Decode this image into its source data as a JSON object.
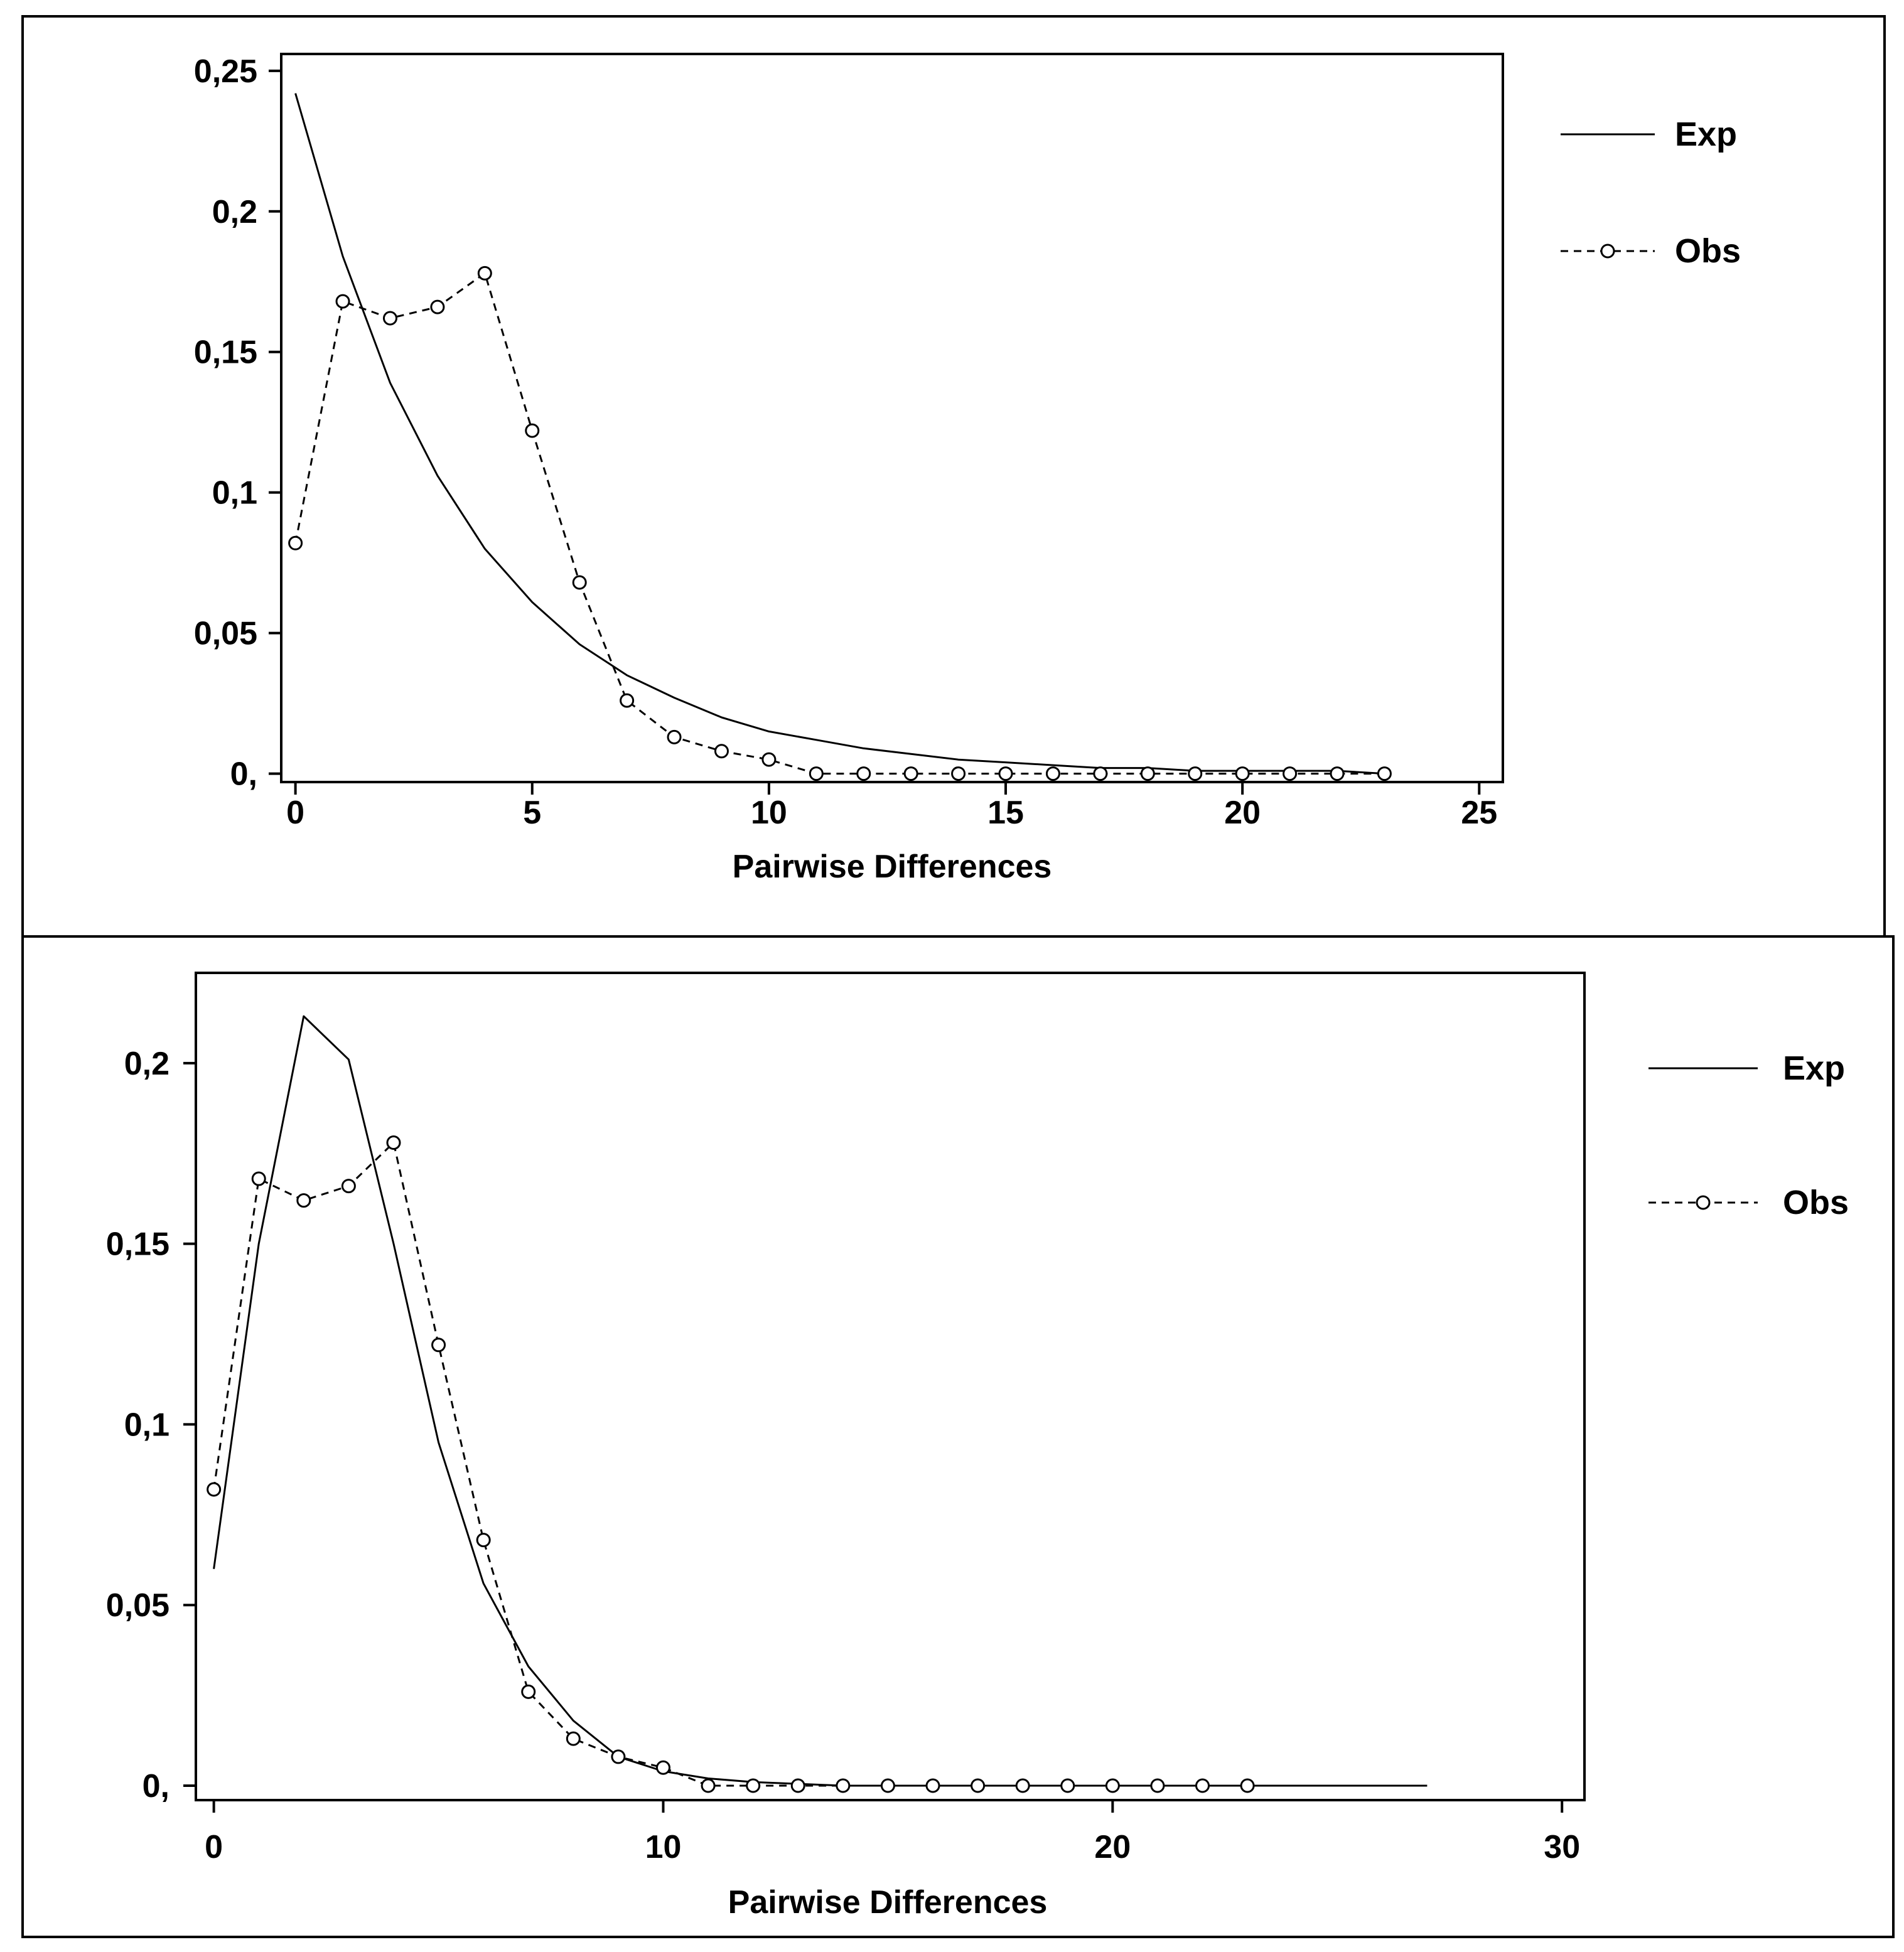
{
  "chart_data": [
    {
      "type": "line",
      "xlabel": "Pairwise Differences",
      "ylabel": "",
      "xlim": [
        -0.3,
        25.5
      ],
      "ylim": [
        -0.003,
        0.256
      ],
      "xticks": [
        0,
        5,
        10,
        15,
        20,
        25
      ],
      "xtick_labels": [
        "0",
        "5",
        "10",
        "15",
        "20",
        "25"
      ],
      "yticks": [
        0,
        0.05,
        0.1,
        0.15,
        0.2,
        0.25
      ],
      "ytick_labels": [
        "0,",
        "0,05",
        "0,1",
        "0,15",
        "0,2",
        "0,25"
      ],
      "legend_position": "right",
      "series": [
        {
          "name": "Exp",
          "style": "solid",
          "x": [
            0,
            1,
            2,
            3,
            4,
            5,
            6,
            7,
            8,
            9,
            10,
            11,
            12,
            13,
            14,
            15,
            16,
            17,
            18,
            19,
            20,
            21,
            22,
            23
          ],
          "values": [
            0.242,
            0.184,
            0.139,
            0.106,
            0.08,
            0.061,
            0.046,
            0.035,
            0.027,
            0.02,
            0.015,
            0.012,
            0.009,
            0.007,
            0.005,
            0.004,
            0.003,
            0.002,
            0.002,
            0.001,
            0.001,
            0.001,
            0.001,
            0.0
          ]
        },
        {
          "name": "Obs",
          "style": "dashed-circles",
          "x": [
            0,
            1,
            2,
            3,
            4,
            5,
            6,
            7,
            8,
            9,
            10,
            11,
            12,
            13,
            14,
            15,
            16,
            17,
            18,
            19,
            20,
            21,
            22,
            23
          ],
          "values": [
            0.082,
            0.168,
            0.162,
            0.166,
            0.178,
            0.122,
            0.068,
            0.026,
            0.013,
            0.008,
            0.005,
            0,
            0,
            0,
            0,
            0,
            0,
            0,
            0,
            0,
            0,
            0,
            0,
            0
          ]
        }
      ]
    },
    {
      "type": "line",
      "xlabel": "Pairwise Differences",
      "ylabel": "",
      "xlim": [
        -0.4,
        30.5
      ],
      "ylim": [
        -0.004,
        0.225
      ],
      "xticks": [
        0,
        10,
        20,
        30
      ],
      "xtick_labels": [
        "0",
        "10",
        "20",
        "30"
      ],
      "yticks": [
        0,
        0.05,
        0.1,
        0.15,
        0.2
      ],
      "ytick_labels": [
        "0,",
        "0,05",
        "0,1",
        "0,15",
        "0,2"
      ],
      "legend_position": "right",
      "series": [
        {
          "name": "Exp",
          "style": "solid",
          "x": [
            0,
            1,
            2,
            3,
            4,
            5,
            6,
            7,
            8,
            9,
            10,
            11,
            12,
            13,
            14,
            15,
            16,
            17,
            18,
            19,
            20,
            21,
            22,
            23,
            24,
            25,
            26,
            27
          ],
          "values": [
            0.06,
            0.15,
            0.213,
            0.201,
            0.15,
            0.095,
            0.056,
            0.033,
            0.018,
            0.008,
            0.004,
            0.002,
            0.001,
            0.0005,
            0,
            0,
            0,
            0,
            0,
            0,
            0,
            0,
            0,
            0,
            0,
            0,
            0,
            0
          ]
        },
        {
          "name": "Obs",
          "style": "dashed-circles",
          "x": [
            0,
            1,
            2,
            3,
            4,
            5,
            6,
            7,
            8,
            9,
            10,
            11,
            12,
            13,
            14,
            15,
            16,
            17,
            18,
            19,
            20,
            21,
            22,
            23
          ],
          "values": [
            0.082,
            0.168,
            0.162,
            0.166,
            0.178,
            0.122,
            0.068,
            0.026,
            0.013,
            0.008,
            0.005,
            0,
            0,
            0,
            0,
            0,
            0,
            0,
            0,
            0,
            0,
            0,
            0,
            0
          ]
        }
      ]
    }
  ]
}
